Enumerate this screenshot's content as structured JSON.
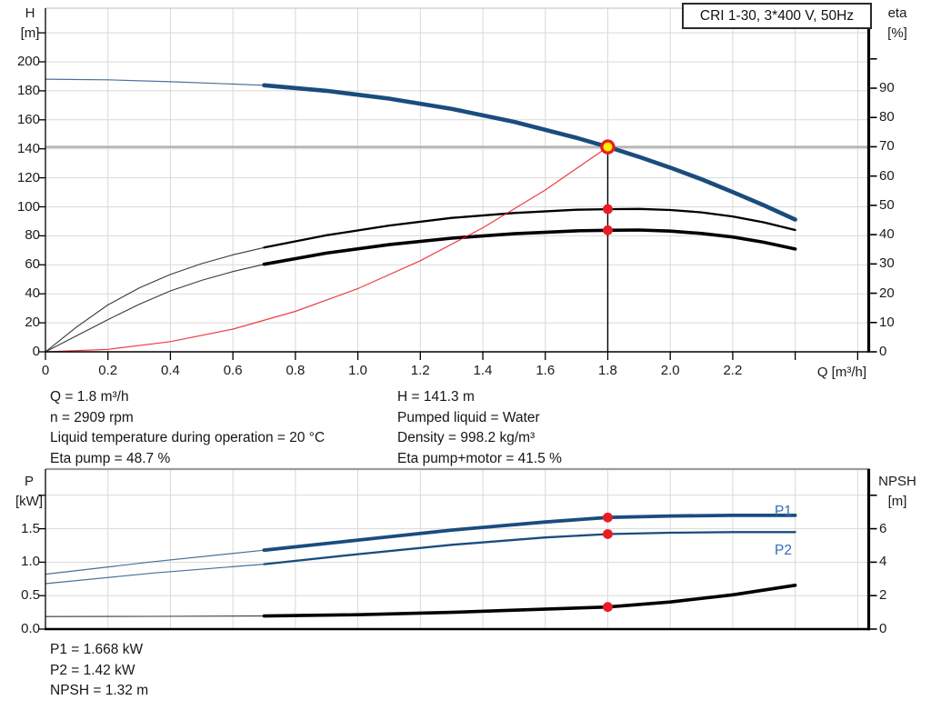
{
  "colors": {
    "curve_blue": "#1a4c7e",
    "label_blue": "#2f6eb5",
    "red": "#ea1c23",
    "yellow": "#ffee00",
    "operating_line_gray": "#b2b2b2",
    "grid": "#d9d9d9",
    "frame_top_light": "#c9c9c9",
    "frame_top_dark": "#9c9c9c"
  },
  "operating_point_info": {
    "left": [
      "Q = 1.8 m³/h",
      "n = 2909 rpm",
      "Liquid temperature during operation = 20 °C",
      "Eta pump = 48.7 %"
    ],
    "right": [
      "H = 141.3 m",
      "Pumped liquid = Water",
      "Density = 998.2 kg/m³",
      "Eta pump+motor = 41.5 %"
    ]
  },
  "results_block": [
    "P1 = 1.668 kW",
    "P2 = 1.42 kW",
    "NPSH = 1.32 m"
  ],
  "chart_data": [
    {
      "id": "qh-eta-chart",
      "type": "line",
      "title": "CRI 1-30, 3*400 V, 50Hz",
      "xlabel": "Q [m³/h]",
      "ylabel_left_lines": [
        "H",
        "[m]"
      ],
      "ylabel_right_lines": [
        "eta",
        "[%]"
      ],
      "xlim": [
        0,
        2.66
      ],
      "ylim_left": [
        0,
        237
      ],
      "ylim_right": [
        0,
        117
      ],
      "grid": true,
      "x_ticks": [
        [
          0,
          "0"
        ],
        [
          0.2,
          "0.2"
        ],
        [
          0.4,
          "0.4"
        ],
        [
          0.6,
          "0.6"
        ],
        [
          0.8,
          "0.8"
        ],
        [
          1,
          "1.0"
        ],
        [
          1.2,
          "1.2"
        ],
        [
          1.4,
          "1.4"
        ],
        [
          1.6,
          "1.6"
        ],
        [
          1.8,
          "1.8"
        ],
        [
          2,
          "2.0"
        ],
        [
          2.2,
          "2.2"
        ],
        [
          2.4,
          ""
        ],
        [
          2.6,
          ""
        ]
      ],
      "y_ticks_left": [
        [
          0,
          "0"
        ],
        [
          20,
          "20"
        ],
        [
          40,
          "40"
        ],
        [
          60,
          "60"
        ],
        [
          80,
          "80"
        ],
        [
          100,
          "100"
        ],
        [
          120,
          "120"
        ],
        [
          140,
          "140"
        ],
        [
          160,
          "160"
        ],
        [
          180,
          "180"
        ],
        [
          200,
          "200"
        ],
        [
          220,
          ""
        ]
      ],
      "y_ticks_right": [
        [
          0,
          "0"
        ],
        [
          10,
          "10"
        ],
        [
          20,
          "20"
        ],
        [
          30,
          "30"
        ],
        [
          40,
          "40"
        ],
        [
          50,
          "50"
        ],
        [
          60,
          "60"
        ],
        [
          70,
          "70"
        ],
        [
          80,
          "80"
        ],
        [
          90,
          "90"
        ],
        [
          100,
          ""
        ]
      ],
      "duty_point": {
        "q": 1.8,
        "h": 141.3,
        "eta_pump": 48.7,
        "eta_pump_motor": 41.5
      },
      "series": [
        {
          "name": "head-curve-thin",
          "axis": "left",
          "style": "blue-thin",
          "points": [
            [
              0,
              188
            ],
            [
              0.2,
              187.6
            ],
            [
              0.4,
              186.3
            ],
            [
              0.55,
              185.1
            ],
            [
              0.7,
              183.8
            ]
          ]
        },
        {
          "name": "head-curve",
          "axis": "left",
          "style": "blue-thick",
          "points": [
            [
              0.7,
              183.8
            ],
            [
              0.9,
              180.0
            ],
            [
              1.1,
              174.6
            ],
            [
              1.3,
              167.6
            ],
            [
              1.5,
              158.6
            ],
            [
              1.7,
              147.6
            ],
            [
              1.8,
              141.3
            ],
            [
              1.9,
              134.5
            ],
            [
              2.0,
              127.0
            ],
            [
              2.1,
              119.0
            ],
            [
              2.2,
              110.2
            ],
            [
              2.3,
              101.0
            ],
            [
              2.4,
              91.2
            ]
          ]
        },
        {
          "name": "eta-pump-thin",
          "axis": "right",
          "style": "black-thin",
          "points": [
            [
              0,
              0
            ],
            [
              0.1,
              8.5
            ],
            [
              0.2,
              16.0
            ],
            [
              0.3,
              21.8
            ],
            [
              0.4,
              26.4
            ],
            [
              0.5,
              30.1
            ],
            [
              0.6,
              33.1
            ],
            [
              0.7,
              35.6
            ]
          ]
        },
        {
          "name": "eta-pump",
          "axis": "right",
          "style": "black-med",
          "points": [
            [
              0.7,
              35.6
            ],
            [
              0.9,
              39.8
            ],
            [
              1.1,
              43.1
            ],
            [
              1.3,
              45.7
            ],
            [
              1.5,
              47.4
            ],
            [
              1.7,
              48.5
            ],
            [
              1.8,
              48.7
            ],
            [
              1.9,
              48.8
            ],
            [
              2.0,
              48.4
            ],
            [
              2.1,
              47.6
            ],
            [
              2.2,
              46.2
            ],
            [
              2.3,
              44.2
            ],
            [
              2.4,
              41.6
            ]
          ]
        },
        {
          "name": "eta-pump-motor-thin",
          "axis": "right",
          "style": "black-thin",
          "points": [
            [
              0,
              0
            ],
            [
              0.1,
              5.5
            ],
            [
              0.2,
              11.0
            ],
            [
              0.3,
              16.2
            ],
            [
              0.4,
              20.8
            ],
            [
              0.5,
              24.4
            ],
            [
              0.6,
              27.4
            ],
            [
              0.7,
              29.9
            ]
          ]
        },
        {
          "name": "eta-pump-motor",
          "axis": "right",
          "style": "black-thick",
          "points": [
            [
              0.7,
              29.9
            ],
            [
              0.9,
              33.7
            ],
            [
              1.1,
              36.6
            ],
            [
              1.3,
              38.8
            ],
            [
              1.5,
              40.3
            ],
            [
              1.7,
              41.3
            ],
            [
              1.8,
              41.5
            ],
            [
              1.9,
              41.6
            ],
            [
              2.0,
              41.2
            ],
            [
              2.1,
              40.4
            ],
            [
              2.2,
              39.2
            ],
            [
              2.3,
              37.4
            ],
            [
              2.4,
              35.1
            ]
          ]
        },
        {
          "name": "system-curve",
          "axis": "left",
          "style": "red-thin",
          "points": [
            [
              0,
              0
            ],
            [
              0.2,
              1.7
            ],
            [
              0.4,
              7.0
            ],
            [
              0.6,
              15.7
            ],
            [
              0.8,
              27.9
            ],
            [
              1.0,
              43.6
            ],
            [
              1.2,
              62.8
            ],
            [
              1.4,
              85.5
            ],
            [
              1.6,
              111.6
            ],
            [
              1.8,
              141.3
            ]
          ]
        }
      ],
      "markers": [
        {
          "kind": "duty-point",
          "axis": "left",
          "q": 1.8,
          "v": 141.3
        },
        {
          "kind": "dot",
          "axis": "right",
          "q": 1.8,
          "v": 48.7
        },
        {
          "kind": "dot",
          "axis": "right",
          "q": 1.8,
          "v": 41.5
        }
      ]
    },
    {
      "id": "power-npsh-chart",
      "type": "line",
      "title": "",
      "xlabel": "",
      "ylabel_left_lines": [
        "P",
        "[kW]"
      ],
      "ylabel_right_lines": [
        "NPSH",
        "[m]"
      ],
      "xlim": [
        0,
        2.66
      ],
      "ylim_left": [
        0,
        2.4
      ],
      "ylim_right": [
        0,
        9.6
      ],
      "grid": true,
      "x_ticks": [
        [
          0.2,
          ""
        ],
        [
          0.4,
          ""
        ],
        [
          0.6,
          ""
        ],
        [
          0.8,
          ""
        ],
        [
          1,
          ""
        ],
        [
          1.2,
          ""
        ],
        [
          1.4,
          ""
        ],
        [
          1.6,
          ""
        ],
        [
          1.8,
          ""
        ],
        [
          2,
          ""
        ],
        [
          2.2,
          ""
        ],
        [
          2.4,
          ""
        ],
        [
          2.6,
          ""
        ]
      ],
      "y_ticks_left": [
        [
          0,
          "0.0"
        ],
        [
          0.5,
          "0.5"
        ],
        [
          1,
          "1.0"
        ],
        [
          1.5,
          "1.5"
        ],
        [
          2,
          ""
        ]
      ],
      "y_ticks_right": [
        [
          0,
          "0"
        ],
        [
          2,
          "2"
        ],
        [
          4,
          "4"
        ],
        [
          6,
          "6"
        ],
        [
          8,
          ""
        ]
      ],
      "duty_point": {
        "q": 1.8,
        "p1": 1.668,
        "p2": 1.42,
        "npsh": 1.32
      },
      "series": [
        {
          "name": "p1-curve-thin",
          "axis": "left",
          "style": "blue-thin",
          "points": [
            [
              0,
              0.82
            ],
            [
              0.35,
              1.01
            ],
            [
              0.7,
              1.18
            ]
          ]
        },
        {
          "name": "p1-curve",
          "label": "P1",
          "axis": "left",
          "style": "blue-thick2",
          "points": [
            [
              0.7,
              1.18
            ],
            [
              1.0,
              1.33
            ],
            [
              1.3,
              1.48
            ],
            [
              1.6,
              1.6
            ],
            [
              1.8,
              1.668
            ],
            [
              2.0,
              1.69
            ],
            [
              2.2,
              1.7
            ],
            [
              2.4,
              1.7
            ]
          ]
        },
        {
          "name": "p2-curve-thin",
          "axis": "left",
          "style": "blue-thin",
          "points": [
            [
              0,
              0.68
            ],
            [
              0.35,
              0.84
            ],
            [
              0.7,
              0.97
            ]
          ]
        },
        {
          "name": "p2-curve",
          "label": "P2",
          "axis": "left",
          "style": "blue-med",
          "points": [
            [
              0.7,
              0.97
            ],
            [
              1.0,
              1.12
            ],
            [
              1.3,
              1.26
            ],
            [
              1.6,
              1.37
            ],
            [
              1.8,
              1.42
            ],
            [
              2.0,
              1.44
            ],
            [
              2.2,
              1.45
            ],
            [
              2.4,
              1.45
            ]
          ]
        },
        {
          "name": "npsh-curve-thin",
          "axis": "right",
          "style": "black-thin",
          "points": [
            [
              0,
              0.75
            ],
            [
              0.35,
              0.76
            ],
            [
              0.7,
              0.78
            ]
          ]
        },
        {
          "name": "npsh-curve",
          "axis": "right",
          "style": "black-thick",
          "points": [
            [
              0.7,
              0.78
            ],
            [
              1.0,
              0.86
            ],
            [
              1.3,
              1.0
            ],
            [
              1.5,
              1.13
            ],
            [
              1.8,
              1.32
            ],
            [
              2.0,
              1.62
            ],
            [
              2.2,
              2.05
            ],
            [
              2.4,
              2.62
            ]
          ]
        }
      ],
      "markers": [
        {
          "kind": "dot",
          "axis": "left",
          "q": 1.8,
          "v": 1.668
        },
        {
          "kind": "dot",
          "axis": "left",
          "q": 1.8,
          "v": 1.42
        },
        {
          "kind": "dot",
          "axis": "right",
          "q": 1.8,
          "v": 1.32
        }
      ]
    }
  ]
}
